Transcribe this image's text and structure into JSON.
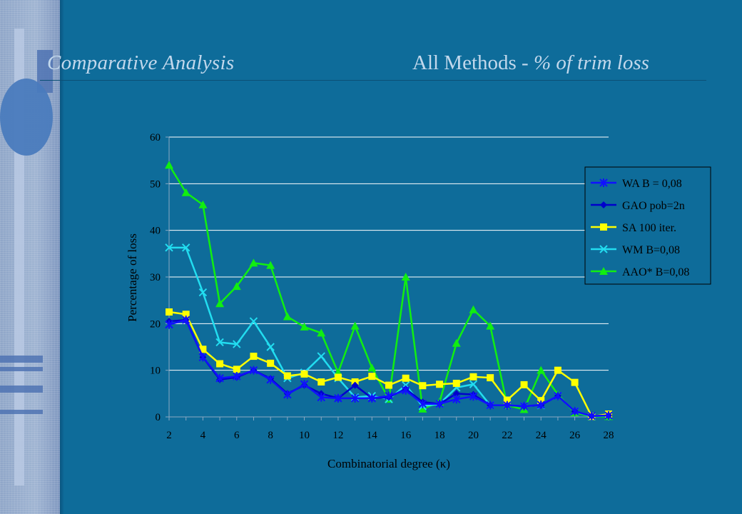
{
  "slide": {
    "title_left": "Comparative Analysis",
    "title_right_plain": "All Methods - ",
    "title_right_italic": "% of trim loss"
  },
  "colors": {
    "background": "#0e6c9a",
    "plot_area": "#0e6c9a",
    "gridlines": "#ffffff",
    "title_text": "#c2d8ec"
  },
  "chart_data": {
    "type": "line",
    "title": "",
    "xlabel": "Combinatorial degree (κ)",
    "ylabel": "Percentage of loss",
    "xlim": [
      2,
      28
    ],
    "ylim": [
      0,
      60
    ],
    "x_ticks": [
      2,
      4,
      6,
      8,
      10,
      12,
      14,
      16,
      18,
      20,
      22,
      24,
      26,
      28
    ],
    "y_ticks": [
      0,
      10,
      20,
      30,
      40,
      50,
      60
    ],
    "grid": "horizontal",
    "legend_position": "right",
    "x": [
      2,
      3,
      4,
      5,
      6,
      7,
      8,
      9,
      10,
      11,
      12,
      13,
      14,
      15,
      16,
      17,
      18,
      19,
      20,
      21,
      22,
      23,
      24,
      25,
      26,
      27,
      28
    ],
    "series": [
      {
        "name": "WA B = 0,08",
        "color": "#1010ff",
        "marker": "star",
        "values": [
          19.8,
          20.8,
          12.8,
          8.3,
          8.7,
          10.0,
          8.0,
          4.8,
          7.0,
          4.2,
          4.0,
          4.0,
          4.0,
          4.5,
          5.7,
          2.8,
          2.8,
          3.8,
          4.4,
          2.5,
          2.5,
          2.3,
          2.6,
          4.5,
          1.2,
          0.2,
          0.3
        ]
      },
      {
        "name": "GAO pob=2n",
        "color": "#0000cc",
        "marker": "diamond",
        "values": [
          20.5,
          20.8,
          12.8,
          8.0,
          8.5,
          10.0,
          8.2,
          5.0,
          6.8,
          5.0,
          4.0,
          6.8,
          4.0,
          4.2,
          6.0,
          3.2,
          2.8,
          5.0,
          4.8,
          2.5,
          2.5,
          2.3,
          2.5,
          4.5,
          1.2,
          0.2,
          0.3
        ]
      },
      {
        "name": "SA 100 iter.",
        "color": "#ffff00",
        "marker": "square",
        "values": [
          22.5,
          22.0,
          14.5,
          11.4,
          10.2,
          13.0,
          11.5,
          8.8,
          9.2,
          7.5,
          8.5,
          7.5,
          8.7,
          6.8,
          8.3,
          6.7,
          7.0,
          7.2,
          8.6,
          8.4,
          3.6,
          6.9,
          3.5,
          10.0,
          7.4,
          0.1,
          0.6
        ]
      },
      {
        "name": "WM B=0,08",
        "color": "#22ddf0",
        "marker": "x",
        "values": [
          36.3,
          36.3,
          26.7,
          16.0,
          15.6,
          20.5,
          15.0,
          8.3,
          9.5,
          13.0,
          8.3,
          4.2,
          4.5,
          3.8,
          6.8,
          2.3,
          2.8,
          6.3,
          7.0,
          2.5,
          2.5,
          2.3,
          2.5,
          4.5,
          1.2,
          0.1,
          0.3
        ]
      },
      {
        "name": "AAO* B=0,08",
        "color": "#11ee11",
        "marker": "triangle",
        "values": [
          54.0,
          48.1,
          45.5,
          24.3,
          28.0,
          33.0,
          32.5,
          21.5,
          19.3,
          18.0,
          9.5,
          19.5,
          10.5,
          3.8,
          30.0,
          1.7,
          3.2,
          15.8,
          23.0,
          19.5,
          2.5,
          1.6,
          10.0,
          4.8,
          0.9,
          0.1,
          0.1
        ]
      }
    ]
  }
}
